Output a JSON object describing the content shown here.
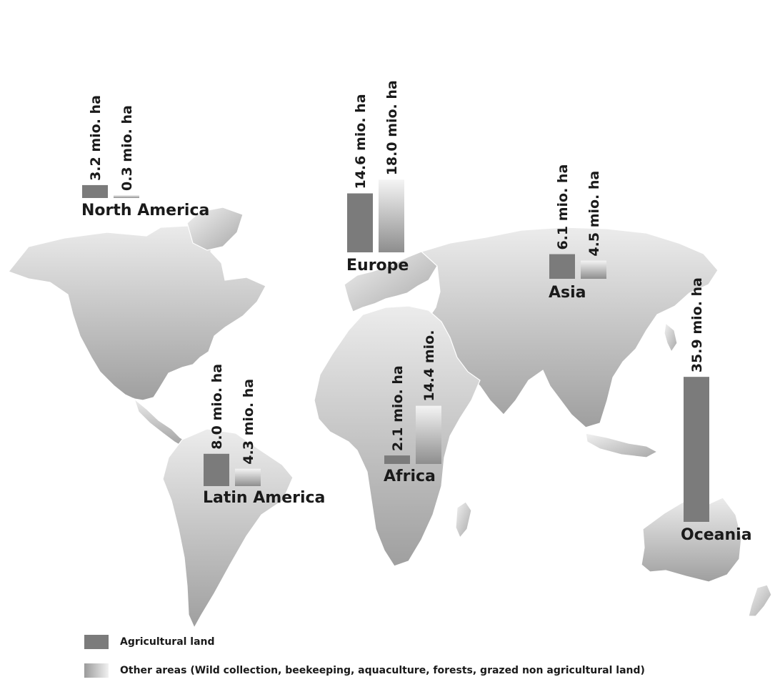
{
  "chart_data": {
    "type": "bar",
    "unit": "mio. ha",
    "series": [
      {
        "name": "Agricultural land",
        "color": "#7b7b7b"
      },
      {
        "name": "Other areas (Wild collection, beekeeping, aquaculture, forests, grazed non agricultural land)",
        "color_from": "#9a9a9a",
        "color_to": "#f1f1f1"
      }
    ],
    "regions": [
      {
        "key": "north_america",
        "name": "North America",
        "agricultural": {
          "value": 3.2,
          "label": "3.2 mio. ha"
        },
        "other": {
          "value": 0.3,
          "label": "0.3 mio. ha"
        }
      },
      {
        "key": "europe",
        "name": "Europe",
        "agricultural": {
          "value": 14.6,
          "label": "14.6 mio. ha"
        },
        "other": {
          "value": 18.0,
          "label": "18.0 mio. ha"
        }
      },
      {
        "key": "asia",
        "name": "Asia",
        "agricultural": {
          "value": 6.1,
          "label": "6.1 mio. ha"
        },
        "other": {
          "value": 4.5,
          "label": "4.5 mio. ha"
        }
      },
      {
        "key": "latin_america",
        "name": "Latin America",
        "agricultural": {
          "value": 8.0,
          "label": "8.0 mio. ha"
        },
        "other": {
          "value": 4.3,
          "label": "4.3 mio. ha"
        }
      },
      {
        "key": "africa",
        "name": "Africa",
        "agricultural": {
          "value": 2.1,
          "label": "2.1 mio. ha"
        },
        "other": {
          "value": 14.4,
          "label": "14.4 mio."
        }
      },
      {
        "key": "oceania",
        "name": "Oceania",
        "agricultural": {
          "value": 35.9,
          "label": "35.9 mio. ha"
        },
        "other": null
      }
    ]
  },
  "legend": {
    "agricultural_label": "Agricultural land",
    "other_label": "Other areas (Wild collection, beekeeping, aquaculture, forests, grazed non agricultural land)"
  }
}
